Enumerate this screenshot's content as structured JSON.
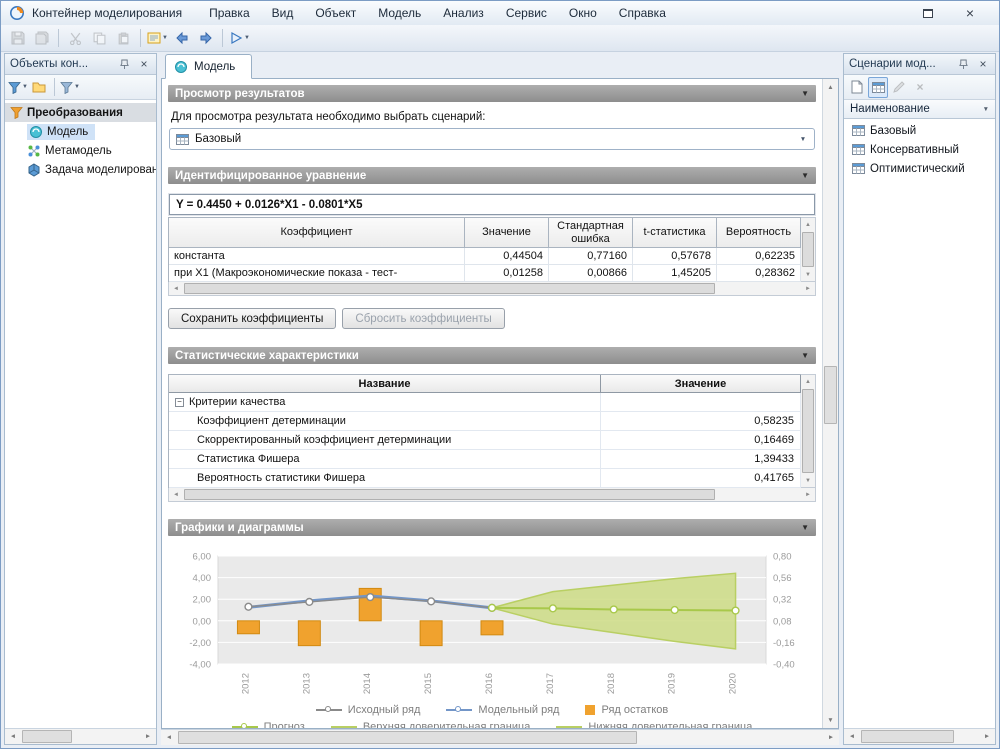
{
  "icons": {
    "up_arrow": "▲",
    "down_arrow": "▼",
    "left_arrow": "◄",
    "right_arrow": "►",
    "caret_down": "▼",
    "close": "×",
    "minus": "−"
  },
  "titlebar": {
    "title": "Контейнер моделирования"
  },
  "menu": {
    "items": [
      "Правка",
      "Вид",
      "Объект",
      "Модель",
      "Анализ",
      "Сервис",
      "Окно",
      "Справка"
    ]
  },
  "left_panel": {
    "title": "Объекты кон...",
    "tree_root": "Преобразования",
    "tree_items": [
      "Модель",
      "Метамодель",
      "Задача моделирования"
    ]
  },
  "main": {
    "tab_label": "Модель"
  },
  "results_section": {
    "title": "Просмотр результатов",
    "hint": "Для просмотра результата необходимо выбрать сценарий:",
    "scenario_value": "Базовый"
  },
  "equation_section": {
    "title": "Идентифицированное уравнение",
    "formula": "Y = 0.4450 + 0.0126*X1 - 0.0801*X5",
    "headers": [
      "Коэффициент",
      "Значение",
      "Стандартная ошибка",
      "t-статистика",
      "Вероятность"
    ],
    "rows": [
      [
        "константа",
        "0,44504",
        "0,77160",
        "0,57678",
        "0,62235"
      ],
      [
        "при X1 (Макроэкономические показа - тест-",
        "0,01258",
        "0,00866",
        "1,45205",
        "0,28362"
      ]
    ],
    "save_button": "Сохранить коэффициенты",
    "reset_button": "Сбросить коэффициенты"
  },
  "stats_section": {
    "title": "Статистические характеристики",
    "headers": [
      "Название",
      "Значение"
    ],
    "group_label": "Критерии качества",
    "rows": [
      [
        "Коэффициент детерминации",
        "0,58235"
      ],
      [
        "Скорректированный коэффициент детерминации",
        "0,16469"
      ],
      [
        "Статистика Фишера",
        "1,39433"
      ],
      [
        "Вероятность статистики Фишера",
        "0,41765"
      ]
    ]
  },
  "charts_section": {
    "title": "Графики и диаграммы"
  },
  "chart_data": {
    "type": "line",
    "x": [
      2012,
      2013,
      2014,
      2015,
      2016,
      2017,
      2018,
      2019,
      2020
    ],
    "series": [
      {
        "key": "original",
        "name": "Исходный ряд",
        "type": "line",
        "values": [
          1.3,
          1.75,
          2.2,
          1.8,
          1.2,
          null,
          null,
          null,
          null
        ]
      },
      {
        "key": "model",
        "name": "Модельный ряд",
        "type": "line",
        "values": [
          1.25,
          1.85,
          2.3,
          1.85,
          1.2,
          null,
          null,
          null,
          null
        ]
      },
      {
        "key": "residual",
        "name": "Ряд остатков",
        "type": "bar",
        "values": [
          -1.2,
          -2.3,
          3.0,
          -2.3,
          -1.3,
          null,
          null,
          null,
          null
        ]
      },
      {
        "key": "forecast",
        "name": "Прогноз",
        "type": "line",
        "values": [
          null,
          null,
          null,
          null,
          1.2,
          1.15,
          1.05,
          1.0,
          0.95
        ]
      },
      {
        "key": "upper",
        "name": "Верхняя доверительная граница",
        "type": "line",
        "values": [
          null,
          null,
          null,
          null,
          1.2,
          2.7,
          3.3,
          3.9,
          4.4
        ]
      },
      {
        "key": "lower",
        "name": "Нижняя доверительная граница",
        "type": "line",
        "values": [
          null,
          null,
          null,
          null,
          1.2,
          -0.3,
          -1.1,
          -1.9,
          -2.6
        ]
      }
    ],
    "y_left": {
      "min": -4,
      "max": 6,
      "ticks": [
        "6,00",
        "4,00",
        "2,00",
        "0,00",
        "-2,00",
        "-4,00"
      ]
    },
    "y_right": {
      "ticks": [
        "0,80",
        "0,56",
        "0,32",
        "0,08",
        "-0,16",
        "-0,40"
      ]
    },
    "colors": {
      "original": "#8a8a8a",
      "model": "#7396c8",
      "residual": "#f0a22e",
      "residual_edge": "#d18a12",
      "forecast": "#a8c84a",
      "band": "#ccdc85",
      "band_edge": "#b9cf63",
      "plot_bg": "#eaeaea"
    },
    "legend_position": "bottom",
    "grid": true
  },
  "right_panel": {
    "title": "Сценарии мод...",
    "column_header": "Наименование",
    "items": [
      "Базовый",
      "Консервативный",
      "Оптимистический"
    ]
  }
}
